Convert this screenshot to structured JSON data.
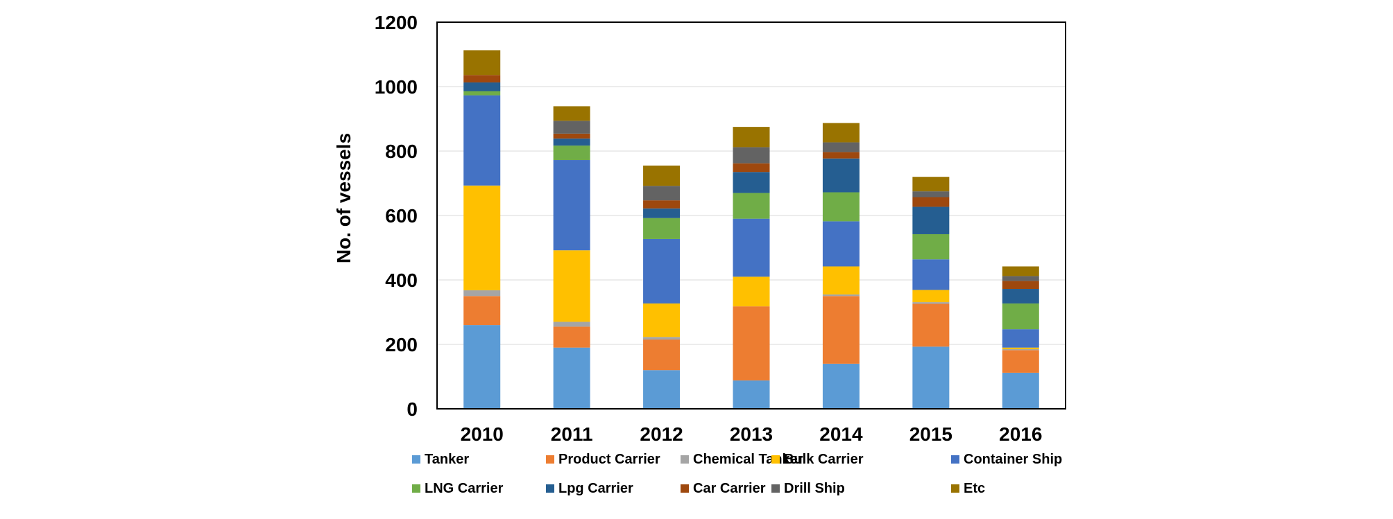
{
  "chart_data": {
    "type": "bar",
    "stacked": true,
    "title": "",
    "xlabel": "",
    "ylabel": "No. of vessels",
    "ylim": [
      0,
      1200
    ],
    "yticks": [
      0,
      200,
      400,
      600,
      800,
      1000,
      1200
    ],
    "grid": true,
    "legend_position": "bottom",
    "categories": [
      "2010",
      "2011",
      "2012",
      "2013",
      "2014",
      "2015",
      "2016"
    ],
    "series": [
      {
        "name": "Tanker",
        "color": "#5B9BD5",
        "values": [
          260,
          190,
          120,
          88,
          140,
          193,
          112
        ]
      },
      {
        "name": "Product Carrier",
        "color": "#ED7D31",
        "values": [
          90,
          65,
          95,
          230,
          210,
          133,
          70
        ]
      },
      {
        "name": "Chemical Tanker",
        "color": "#A5A5A5",
        "values": [
          18,
          15,
          8,
          0,
          5,
          5,
          3
        ]
      },
      {
        "name": "Bulk Carrier",
        "color": "#FFC000",
        "values": [
          325,
          222,
          104,
          92,
          87,
          38,
          5
        ]
      },
      {
        "name": "Container Ship",
        "color": "#4472C4",
        "values": [
          280,
          280,
          200,
          180,
          140,
          95,
          57
        ]
      },
      {
        "name": "LNG Carrier",
        "color": "#70AD47",
        "values": [
          13,
          45,
          65,
          80,
          90,
          78,
          80
        ]
      },
      {
        "name": "Lpg Carrier",
        "color": "#255E91",
        "values": [
          27,
          22,
          30,
          65,
          105,
          85,
          45
        ]
      },
      {
        "name": "Car Carrier",
        "color": "#9E480E",
        "values": [
          23,
          15,
          25,
          27,
          20,
          30,
          25
        ]
      },
      {
        "name": "Drill Ship",
        "color": "#636363",
        "values": [
          0,
          40,
          45,
          50,
          30,
          18,
          15
        ]
      },
      {
        "name": "Etc",
        "color": "#997300",
        "values": [
          77,
          45,
          63,
          63,
          60,
          45,
          30
        ]
      }
    ]
  }
}
